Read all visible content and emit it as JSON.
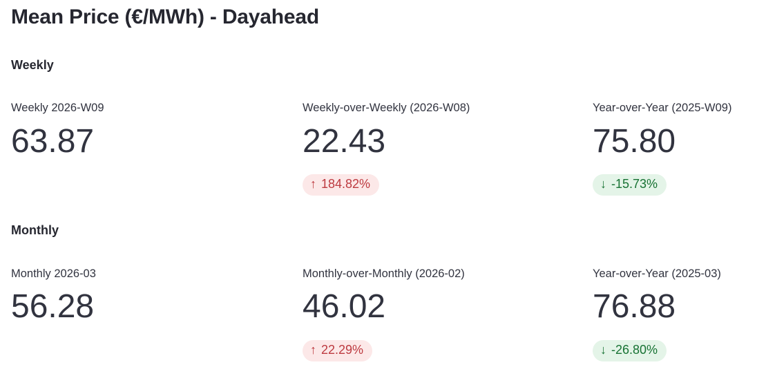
{
  "page": {
    "title": "Mean Price (€/MWh) - Dayahead"
  },
  "colors": {
    "title": "#262730",
    "text": "#31333f",
    "red_text": "#bd3a40",
    "red_bg": "#fce8e8",
    "green_text": "#177233",
    "green_bg": "#e4f4e8"
  },
  "sections": [
    {
      "heading": "Weekly",
      "metrics": [
        {
          "label": "Weekly 2026-W09",
          "value": "63.87"
        },
        {
          "label": "Weekly-over-Weekly (2026-W08)",
          "value": "22.43",
          "delta": {
            "arrow": "↑",
            "text": "184.82%",
            "direction": "up",
            "sentiment": "negative"
          }
        },
        {
          "label": "Year-over-Year (2025-W09)",
          "value": "75.80",
          "delta": {
            "arrow": "↓",
            "text": "-15.73%",
            "direction": "down",
            "sentiment": "positive"
          }
        }
      ]
    },
    {
      "heading": "Monthly",
      "metrics": [
        {
          "label": "Monthly 2026-03",
          "value": "56.28"
        },
        {
          "label": "Monthly-over-Monthly (2026-02)",
          "value": "46.02",
          "delta": {
            "arrow": "↑",
            "text": "22.29%",
            "direction": "up",
            "sentiment": "negative"
          }
        },
        {
          "label": "Year-over-Year (2025-03)",
          "value": "76.88",
          "delta": {
            "arrow": "↓",
            "text": "-26.80%",
            "direction": "down",
            "sentiment": "positive"
          }
        }
      ]
    }
  ]
}
